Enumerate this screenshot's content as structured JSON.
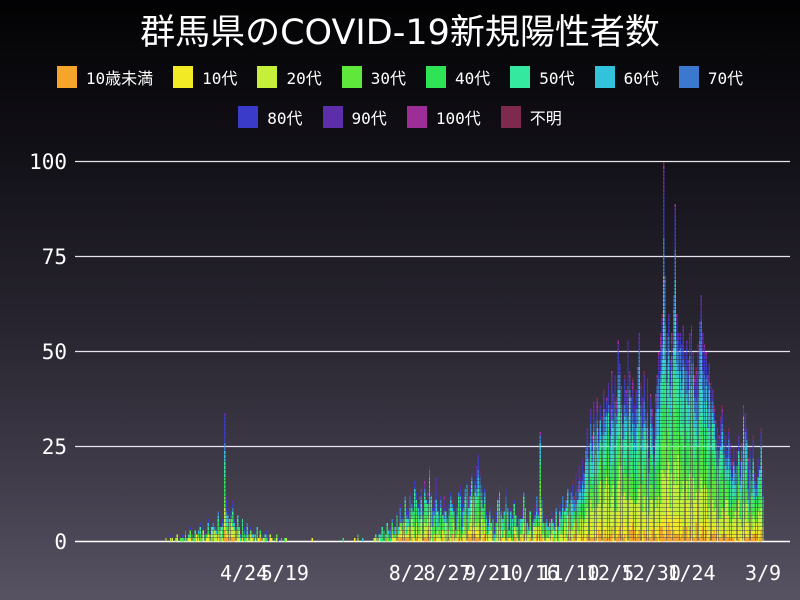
{
  "title": "群馬県のCOVID-19新規陽性者数",
  "chart_data": {
    "type": "bar",
    "stacked": true,
    "title": "群馬県のCOVID-19新規陽性者数",
    "xlabel": "",
    "ylabel": "",
    "ylim": [
      0,
      100
    ],
    "yticks": [
      0,
      25,
      50,
      75,
      100
    ],
    "grid": true,
    "legend_position": "top",
    "x_ticks": [
      {
        "label": "4/24",
        "day": 48
      },
      {
        "label": "5/19",
        "day": 73
      },
      {
        "label": "8/2",
        "day": 148
      },
      {
        "label": "8/27",
        "day": 173
      },
      {
        "label": "9/21",
        "day": 198
      },
      {
        "label": "10/16",
        "day": 223
      },
      {
        "label": "11/10",
        "day": 248
      },
      {
        "label": "12/5",
        "day": 273
      },
      {
        "label": "12/30",
        "day": 298
      },
      {
        "label": "1/24",
        "day": 323
      },
      {
        "label": "3/9",
        "day": 367
      }
    ],
    "series": [
      {
        "label": "10歳未満",
        "color": "#F6A52B",
        "fraction": 0.04
      },
      {
        "label": "10代",
        "color": "#F2EA25",
        "fraction": 0.07
      },
      {
        "label": "20代",
        "color": "#C5EF38",
        "fraction": 0.16
      },
      {
        "label": "30代",
        "color": "#5FE83C",
        "fraction": 0.14
      },
      {
        "label": "40代",
        "color": "#2FE356",
        "fraction": 0.13
      },
      {
        "label": "50代",
        "color": "#35E8A0",
        "fraction": 0.13
      },
      {
        "label": "60代",
        "color": "#33C2DC",
        "fraction": 0.1
      },
      {
        "label": "70代",
        "color": "#3B79CF",
        "fraction": 0.09
      },
      {
        "label": "80代",
        "color": "#3A3CC9",
        "fraction": 0.08
      },
      {
        "label": "90代",
        "color": "#5D2EA9",
        "fraction": 0.04
      },
      {
        "label": "100代",
        "color": "#9D2D97",
        "fraction": 0.011
      },
      {
        "label": "不明",
        "color": "#7D2A4E",
        "fraction": 0.009
      }
    ],
    "daily_totals": [
      1,
      0,
      0,
      2,
      1,
      0,
      1,
      2,
      0,
      1,
      2,
      1,
      3,
      1,
      2,
      4,
      2,
      1,
      3,
      2,
      3,
      5,
      2,
      4,
      3,
      2,
      6,
      3,
      4,
      5,
      4,
      3,
      8,
      5,
      4,
      6,
      34,
      12,
      9,
      6,
      8,
      11,
      6,
      4,
      7,
      5,
      3,
      6,
      4,
      2,
      5,
      3,
      4,
      2,
      3,
      2,
      4,
      1,
      3,
      2,
      1,
      2,
      3,
      1,
      2,
      1,
      0,
      1,
      2,
      1,
      0,
      1,
      0,
      1,
      1,
      0,
      0,
      0,
      0,
      0,
      0,
      0,
      0,
      0,
      0,
      0,
      0,
      0,
      0,
      0,
      1,
      0,
      0,
      0,
      0,
      0,
      0,
      0,
      0,
      0,
      0,
      0,
      0,
      0,
      0,
      0,
      0,
      0,
      0,
      1,
      0,
      0,
      0,
      0,
      0,
      0,
      1,
      0,
      2,
      0,
      0,
      1,
      0,
      0,
      0,
      0,
      0,
      0,
      1,
      2,
      1,
      3,
      2,
      4,
      3,
      2,
      5,
      3,
      4,
      6,
      4,
      5,
      8,
      4,
      10,
      7,
      6,
      12,
      9,
      8,
      14,
      11,
      9,
      16,
      13,
      10,
      12,
      14,
      10,
      16,
      11,
      13,
      20,
      13,
      9,
      11,
      17,
      10,
      8,
      12,
      7,
      12,
      9,
      7,
      10,
      13,
      11,
      9,
      7,
      10,
      13,
      15,
      12,
      10,
      14,
      16,
      12,
      15,
      18,
      14,
      16,
      20,
      23,
      19,
      15,
      10,
      14,
      8,
      6,
      9,
      5,
      7,
      4,
      8,
      12,
      15,
      9,
      6,
      8,
      14,
      9,
      5,
      9,
      7,
      11,
      8,
      5,
      8,
      6,
      9,
      13,
      9,
      6,
      4,
      8,
      6,
      10,
      8,
      12,
      9,
      29,
      12,
      8,
      5,
      7,
      4,
      6,
      8,
      5,
      7,
      9,
      6,
      10,
      8,
      12,
      9,
      11,
      14,
      10,
      13,
      16,
      12,
      18,
      15,
      20,
      17,
      22,
      18,
      25,
      30,
      26,
      35,
      28,
      37,
      32,
      38,
      30,
      36,
      33,
      40,
      35,
      38,
      42,
      36,
      45,
      39,
      44,
      38,
      53,
      47,
      41,
      36,
      44,
      40,
      53,
      45,
      38,
      43,
      36,
      40,
      46,
      55,
      42,
      38,
      45,
      35,
      43,
      30,
      39,
      35,
      30,
      39,
      44,
      50,
      55,
      60,
      100,
      70,
      55,
      60,
      48,
      55,
      65,
      89,
      60,
      55,
      55,
      52,
      57,
      50,
      53,
      48,
      55,
      57,
      50,
      44,
      46,
      52,
      58,
      65,
      55,
      52,
      50,
      44,
      47,
      42,
      40,
      36,
      32,
      30,
      28,
      33,
      36,
      30,
      28,
      24,
      30,
      26,
      22,
      25,
      20,
      24,
      28,
      22,
      26,
      36,
      34,
      30,
      22,
      25,
      18,
      28,
      18,
      15,
      22,
      20,
      30,
      20
    ]
  }
}
